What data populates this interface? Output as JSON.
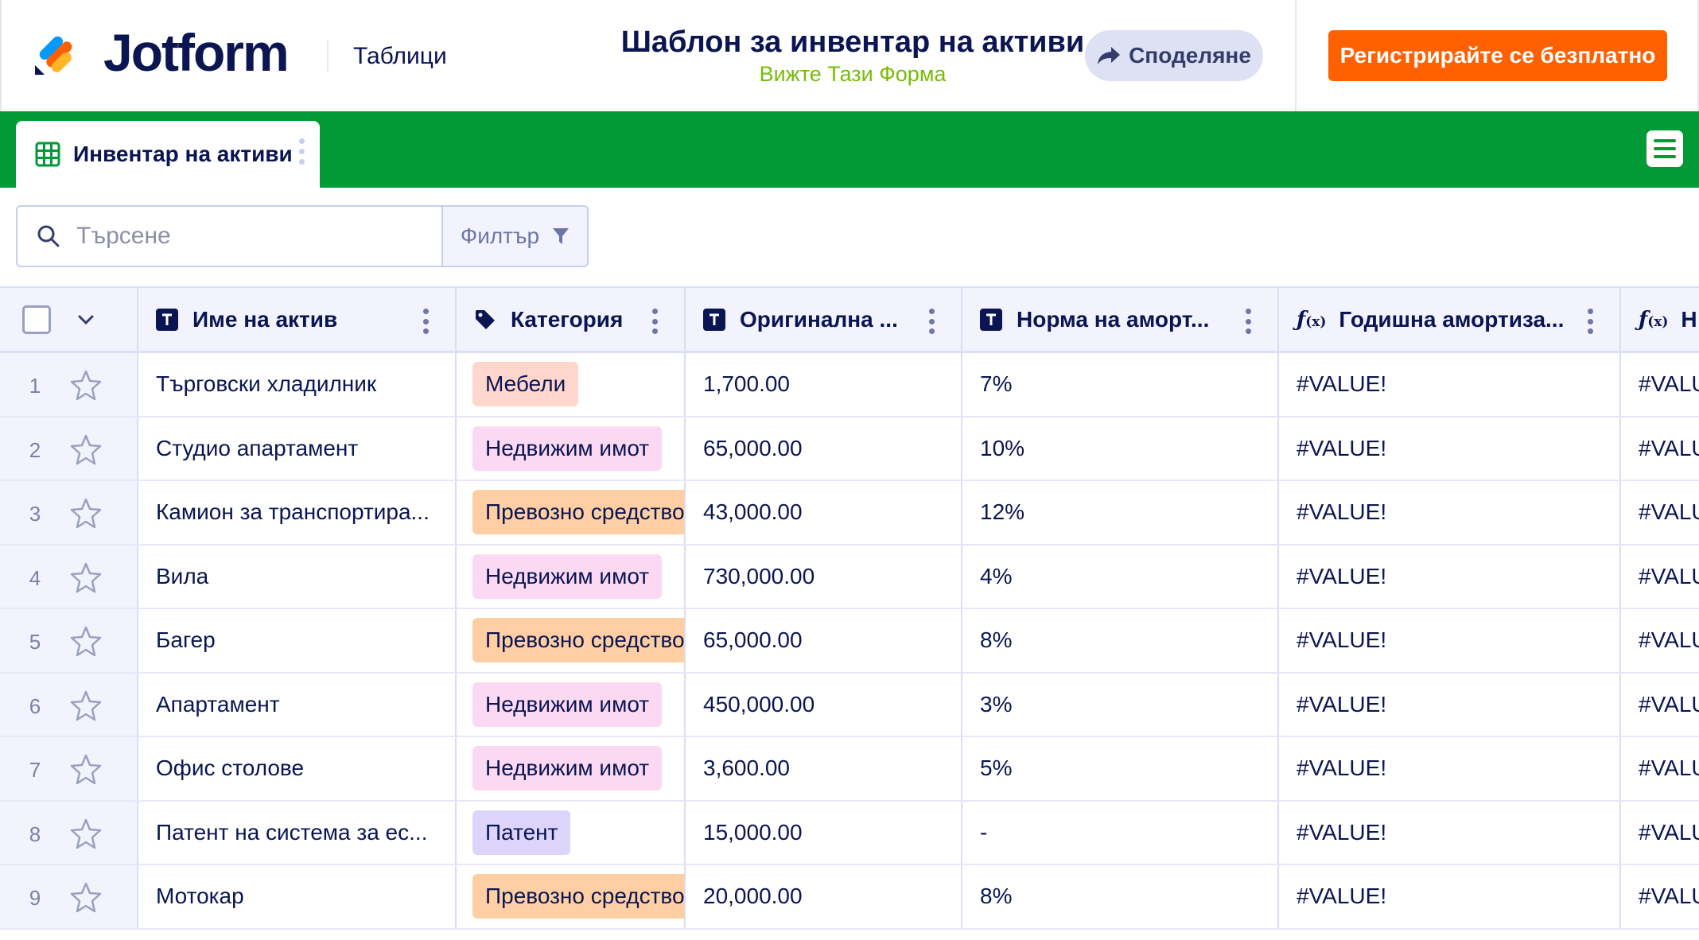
{
  "header": {
    "brand": "Jotform",
    "product": "Таблици",
    "form_title": "Шаблон за инвентар на активи",
    "form_link": "Вижте Тази Форма",
    "share_label": "Споделяне",
    "signup_label": "Регистрирайте се безплатно"
  },
  "tabs": [
    {
      "label": "Инвентар на активи",
      "active": true
    }
  ],
  "toolbar": {
    "search_placeholder": "Търсене",
    "filter_label": "Филтър"
  },
  "table": {
    "columns": [
      {
        "label": "Име на актив",
        "type_icon": "text-type-icon"
      },
      {
        "label": "Категория",
        "type_icon": "tag-icon"
      },
      {
        "label": "Оригинална ...",
        "type_icon": "text-type-icon"
      },
      {
        "label": "Норма на аморт...",
        "type_icon": "text-type-icon"
      },
      {
        "label": "Годишна амортиза...",
        "type_icon": "formula-icon"
      },
      {
        "label": "Н",
        "type_icon": "formula-icon"
      }
    ],
    "rows": [
      {
        "num": "1",
        "name": "Търговски хладилник",
        "category": "Мебели",
        "cost": "1,700.00",
        "rate": "7%",
        "annual": "#VALUE!",
        "extra": "#VALU"
      },
      {
        "num": "2",
        "name": "Студио апартамент",
        "category": "Недвижим имот",
        "cost": "65,000.00",
        "rate": "10%",
        "annual": "#VALUE!",
        "extra": "#VALU"
      },
      {
        "num": "3",
        "name": "Камион за транспортира...",
        "category": "Превозно средство",
        "cost": "43,000.00",
        "rate": "12%",
        "annual": "#VALUE!",
        "extra": "#VALU"
      },
      {
        "num": "4",
        "name": "Вила",
        "category": "Недвижим имот",
        "cost": "730,000.00",
        "rate": "4%",
        "annual": "#VALUE!",
        "extra": "#VALU"
      },
      {
        "num": "5",
        "name": "Багер",
        "category": "Превозно средство",
        "cost": "65,000.00",
        "rate": "8%",
        "annual": "#VALUE!",
        "extra": "#VALU"
      },
      {
        "num": "6",
        "name": "Апартамент",
        "category": "Недвижим имот",
        "cost": "450,000.00",
        "rate": "3%",
        "annual": "#VALUE!",
        "extra": "#VALU"
      },
      {
        "num": "7",
        "name": "Офис столове",
        "category": "Недвижим имот",
        "cost": "3,600.00",
        "rate": "5%",
        "annual": "#VALUE!",
        "extra": "#VALU"
      },
      {
        "num": "8",
        "name": "Патент на система за ес...",
        "category": "Патент",
        "cost": "15,000.00",
        "rate": "-",
        "annual": "#VALUE!",
        "extra": "#VALU"
      },
      {
        "num": "9",
        "name": "Мотокар",
        "category": "Превозно средство",
        "cost": "20,000.00",
        "rate": "8%",
        "annual": "#VALUE!",
        "extra": "#VALU"
      }
    ]
  },
  "colors": {
    "brand_navy": "#0a1551",
    "tab_bar_green": "#009b37",
    "signup_orange": "#ff6100",
    "link_green": "#78bb07",
    "tag_furniture": "#ffd6cc",
    "tag_real_estate": "#fcd9f2",
    "tag_vehicle": "#ffcfa3",
    "tag_patent": "#ddd4fb"
  }
}
